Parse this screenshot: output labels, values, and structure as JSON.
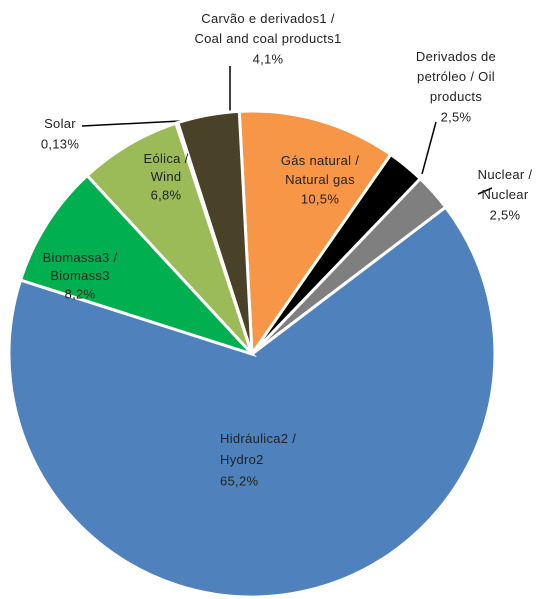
{
  "chart_data": {
    "type": "pie",
    "categories": [
      "Gás natural / Natural gas",
      "Derivados de petróleo / Oil products",
      "Nuclear / Nuclear",
      "Hidráulica2 / Hydro2",
      "Biomassa3 / Biomass3",
      "Eólica / Wind",
      "Solar",
      "Carvão e derivados1 / Coal and coal products1"
    ],
    "values": [
      10.5,
      2.5,
      2.5,
      65.2,
      8.2,
      6.8,
      0.13,
      4.1
    ],
    "value_labels": [
      "10,5%",
      "2,5%",
      "2,5%",
      "65,2%",
      "8,2%",
      "6,8%",
      "0,13%",
      "4,1%"
    ],
    "colors": [
      "#f79646",
      "#000000",
      "#7f7f7f",
      "#4f81bd",
      "#00b050",
      "#9bbb59",
      "#ffff00",
      "#4a4129"
    ]
  }
}
